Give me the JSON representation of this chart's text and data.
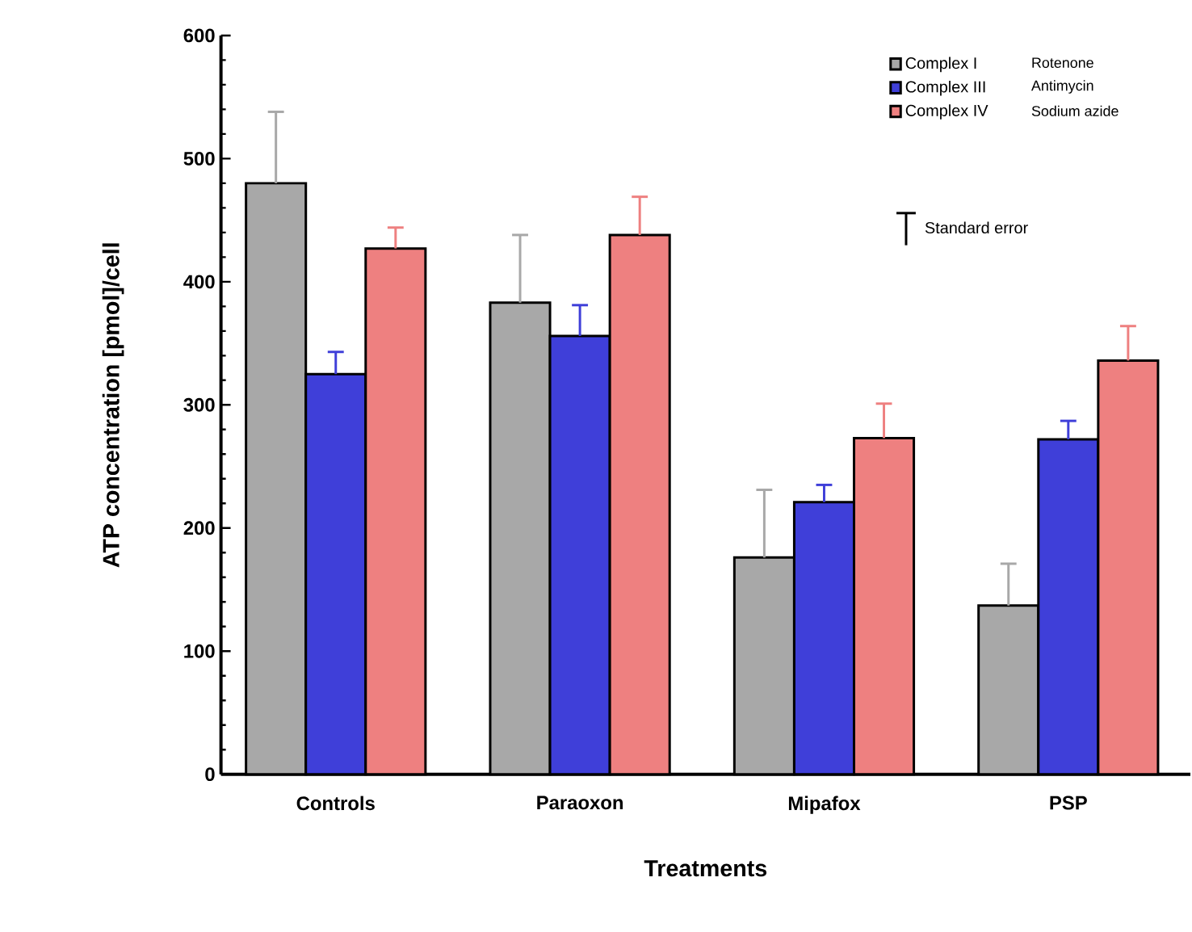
{
  "chart_data": {
    "type": "bar",
    "xlabel": "Treatments",
    "ylabel": "ATP concentration  [pmol]/cell",
    "categories": [
      "Controls",
      "Paraoxon",
      "Mipafox",
      "PSP"
    ],
    "series": [
      {
        "name": "Complex I",
        "color": "#a8a8a8",
        "values": [
          480,
          383,
          176,
          137
        ],
        "errors": [
          [
            480,
            538
          ],
          [
            383,
            438
          ],
          [
            176,
            231
          ],
          [
            137,
            171
          ]
        ]
      },
      {
        "name": "Complex III",
        "color": "#3f3fd9",
        "values": [
          325,
          356,
          221,
          272
        ],
        "errors": [
          [
            325,
            343
          ],
          [
            356,
            381
          ],
          [
            221,
            235
          ],
          [
            272,
            287
          ]
        ]
      },
      {
        "name": "Complex IV",
        "color": "#ee8080",
        "values": [
          427,
          438,
          273,
          336
        ],
        "errors": [
          [
            427,
            444
          ],
          [
            438,
            469
          ],
          [
            273,
            301
          ],
          [
            336,
            364
          ]
        ]
      }
    ],
    "ylim": [
      0,
      600
    ],
    "yticks": [
      0,
      100,
      200,
      300,
      400,
      500,
      600
    ],
    "grid": false,
    "legend": "top right",
    "annotations": [
      "Rotenone",
      "Antimycin",
      "Sodium azide",
      "Standard error"
    ]
  }
}
